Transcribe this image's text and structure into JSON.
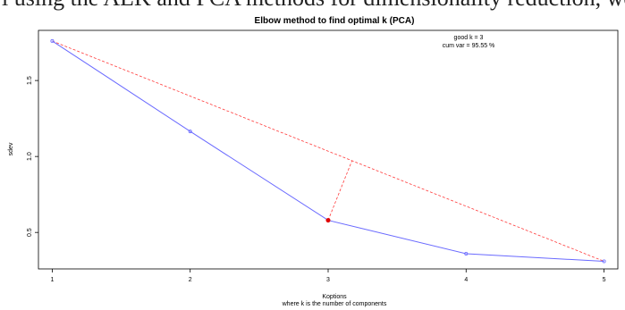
{
  "top_text": "l using the ALK and PCA methods for dimensionality reduction, we are able to",
  "chart_data": {
    "type": "line",
    "title": "Elbow method to find optimal k (PCA)",
    "xlabel": "Koptions",
    "xlabel2": "where k is the number of components",
    "ylabel": "sdev",
    "x": [
      1,
      2,
      3,
      4,
      5
    ],
    "xticks": [
      "1",
      "2",
      "3",
      "4",
      "5"
    ],
    "yticks": [
      "0.5",
      "1.0",
      "1.5"
    ],
    "ytick_values": [
      0.5,
      1.0,
      1.5
    ],
    "xlim": [
      0.9,
      5.1
    ],
    "ylim": [
      0.26,
      1.83
    ],
    "series": [
      {
        "values": [
          1.76,
          1.165,
          0.58,
          0.36,
          0.31
        ]
      }
    ],
    "chord": {
      "from": [
        1,
        1.76
      ],
      "to": [
        5,
        0.31
      ]
    },
    "elbow": {
      "x": 3,
      "y": 0.58
    },
    "annotation": {
      "line1": "good k = 3",
      "line2": "cum var = 95.55 %"
    },
    "colors": {
      "series": "#6a6aff",
      "chord": "#ff3a3a",
      "elbow": "#e00000"
    }
  }
}
